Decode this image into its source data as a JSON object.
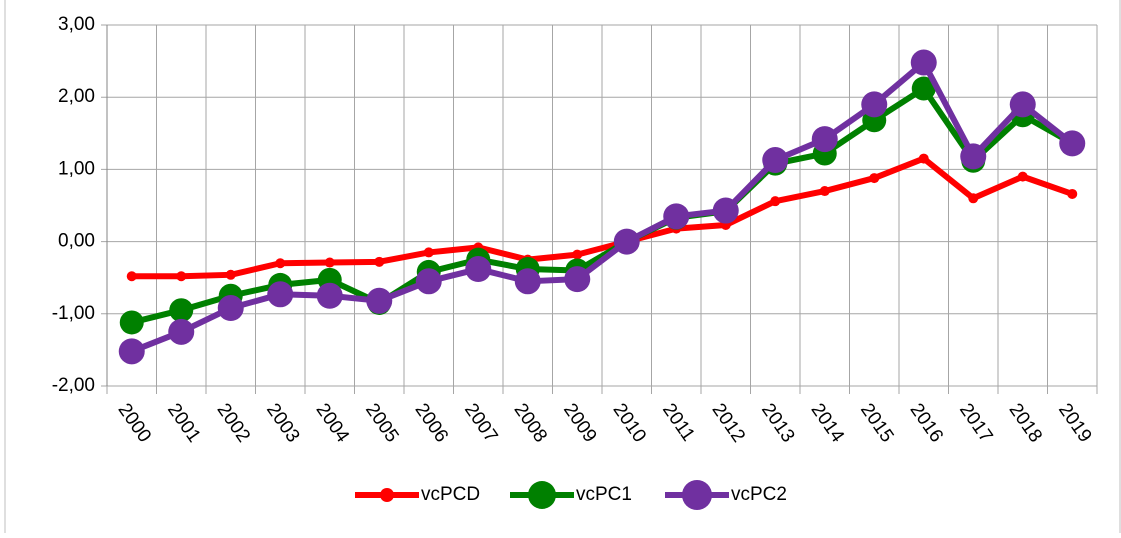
{
  "chart_data": {
    "type": "line",
    "categories": [
      "2000",
      "2001",
      "2002",
      "2003",
      "2004",
      "2005",
      "2006",
      "2007",
      "2008",
      "2009",
      "2010",
      "2011",
      "2012",
      "2013",
      "2014",
      "2015",
      "2016",
      "2017",
      "2018",
      "2019"
    ],
    "series": [
      {
        "name": "vcPCD",
        "color": "#ff0000",
        "values": [
          -0.48,
          -0.48,
          -0.46,
          -0.3,
          -0.29,
          -0.28,
          -0.15,
          -0.08,
          -0.25,
          -0.18,
          0.0,
          0.18,
          0.23,
          0.56,
          0.7,
          0.88,
          1.15,
          0.6,
          0.9,
          0.66
        ]
      },
      {
        "name": "vcPC1",
        "color": "#008000",
        "values": [
          -1.12,
          -0.95,
          -0.75,
          -0.6,
          -0.53,
          -0.85,
          -0.42,
          -0.25,
          -0.38,
          -0.4,
          0.0,
          0.33,
          0.42,
          1.08,
          1.22,
          1.68,
          2.12,
          1.12,
          1.75,
          1.36
        ]
      },
      {
        "name": "vcPC2",
        "color": "#7030a0",
        "values": [
          -1.52,
          -1.25,
          -0.92,
          -0.73,
          -0.75,
          -0.82,
          -0.55,
          -0.38,
          -0.55,
          -0.52,
          0.0,
          0.35,
          0.43,
          1.13,
          1.42,
          1.9,
          2.48,
          1.18,
          1.9,
          1.36
        ]
      }
    ],
    "ylim": [
      -2,
      3
    ],
    "yticks": [
      {
        "value": -2,
        "label": "-2,00"
      },
      {
        "value": -1,
        "label": "-1,00"
      },
      {
        "value": 0,
        "label": "0,00"
      },
      {
        "value": 1,
        "label": "1,00"
      },
      {
        "value": 2,
        "label": "2,00"
      },
      {
        "value": 3,
        "label": "3,00"
      }
    ],
    "grid": true,
    "legend": "bottom"
  }
}
